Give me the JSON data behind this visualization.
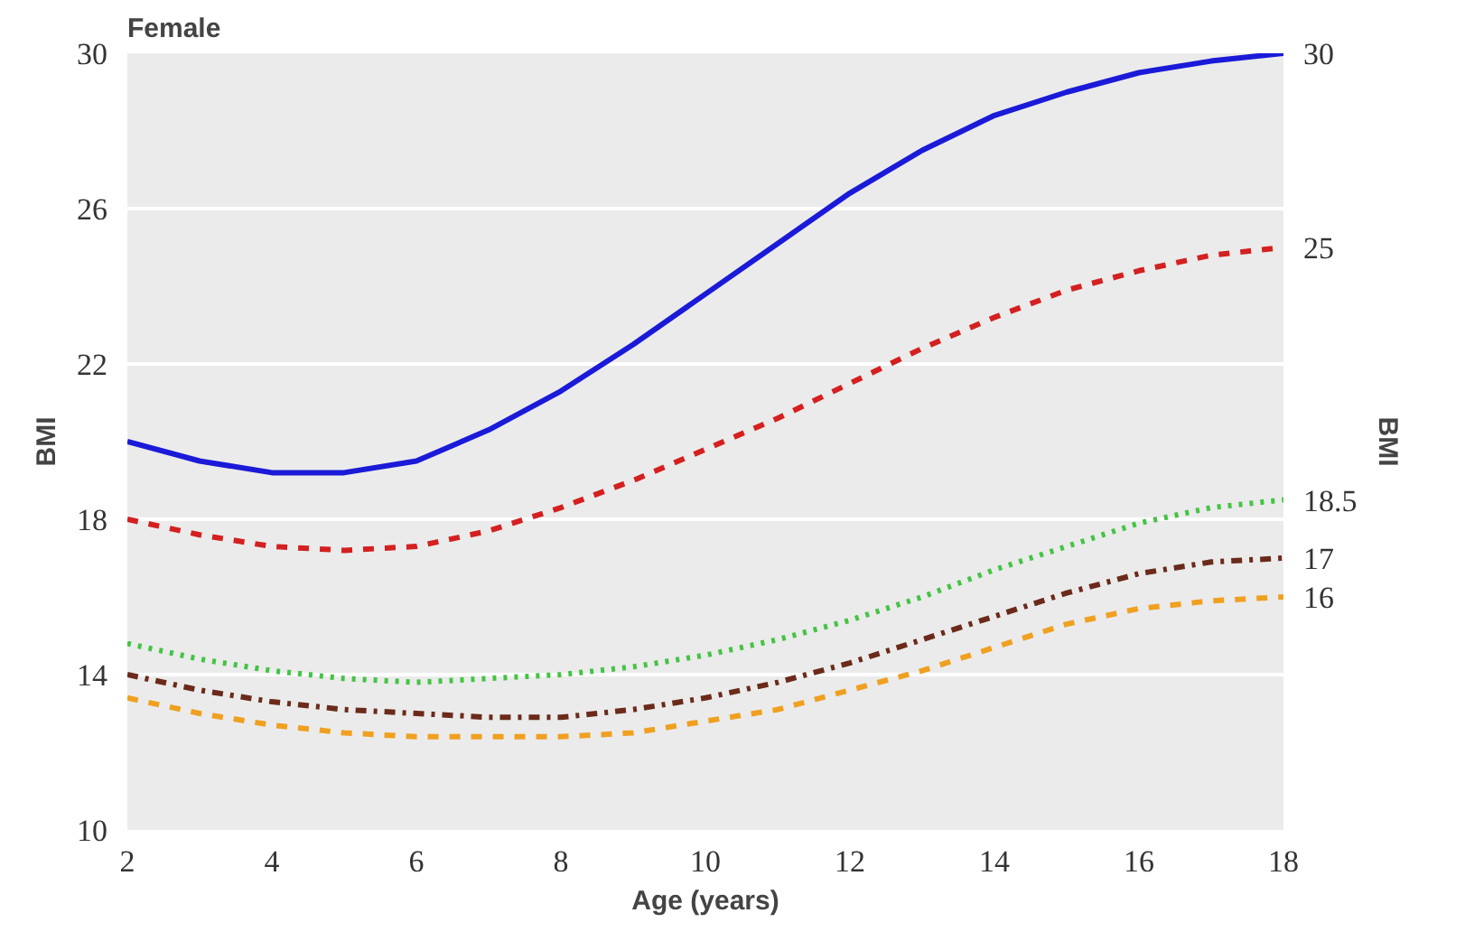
{
  "chart_data": {
    "type": "line",
    "title": "Female",
    "xlabel": "Age (years)",
    "ylabel": "BMI",
    "y2label": "BMI",
    "x": [
      2,
      3,
      4,
      5,
      6,
      7,
      8,
      9,
      10,
      11,
      12,
      13,
      14,
      15,
      16,
      17,
      18
    ],
    "xlim": [
      2,
      18
    ],
    "xticks": [
      2,
      4,
      6,
      8,
      10,
      12,
      14,
      16,
      18
    ],
    "ylim": [
      10,
      30
    ],
    "yticks": [
      10,
      14,
      18,
      22,
      26,
      30
    ],
    "y2lim": [
      10,
      30
    ],
    "y2ticks": [
      16,
      17,
      18.5,
      25,
      30
    ],
    "grid": "y",
    "marker": "none",
    "series": [
      {
        "color": "#1a1ad8",
        "line_style": "solid",
        "values": [
          20.0,
          19.5,
          19.2,
          19.2,
          19.5,
          20.3,
          21.3,
          22.5,
          23.8,
          25.1,
          26.4,
          27.5,
          28.4,
          29.0,
          29.5,
          29.8,
          30.0
        ]
      },
      {
        "color": "#d42020",
        "line_style": "dashed",
        "values": [
          18.0,
          17.6,
          17.3,
          17.2,
          17.3,
          17.7,
          18.3,
          19.0,
          19.8,
          20.6,
          21.5,
          22.4,
          23.2,
          23.9,
          24.4,
          24.8,
          25.0
        ]
      },
      {
        "color": "#44c444",
        "line_style": "dotted",
        "values": [
          14.8,
          14.4,
          14.1,
          13.9,
          13.8,
          13.9,
          14.0,
          14.2,
          14.5,
          14.9,
          15.4,
          16.0,
          16.7,
          17.3,
          17.9,
          18.3,
          18.5
        ]
      },
      {
        "color": "#6b2a1a",
        "line_style": "dashdot",
        "values": [
          14.0,
          13.6,
          13.3,
          13.1,
          13.0,
          12.9,
          12.9,
          13.1,
          13.4,
          13.8,
          14.3,
          14.9,
          15.5,
          16.1,
          16.6,
          16.9,
          17.0
        ]
      },
      {
        "color": "#f0a020",
        "line_style": "dashed",
        "values": [
          13.4,
          13.0,
          12.7,
          12.5,
          12.4,
          12.4,
          12.4,
          12.5,
          12.8,
          13.1,
          13.6,
          14.1,
          14.7,
          15.3,
          15.7,
          15.9,
          16.0
        ]
      }
    ]
  }
}
